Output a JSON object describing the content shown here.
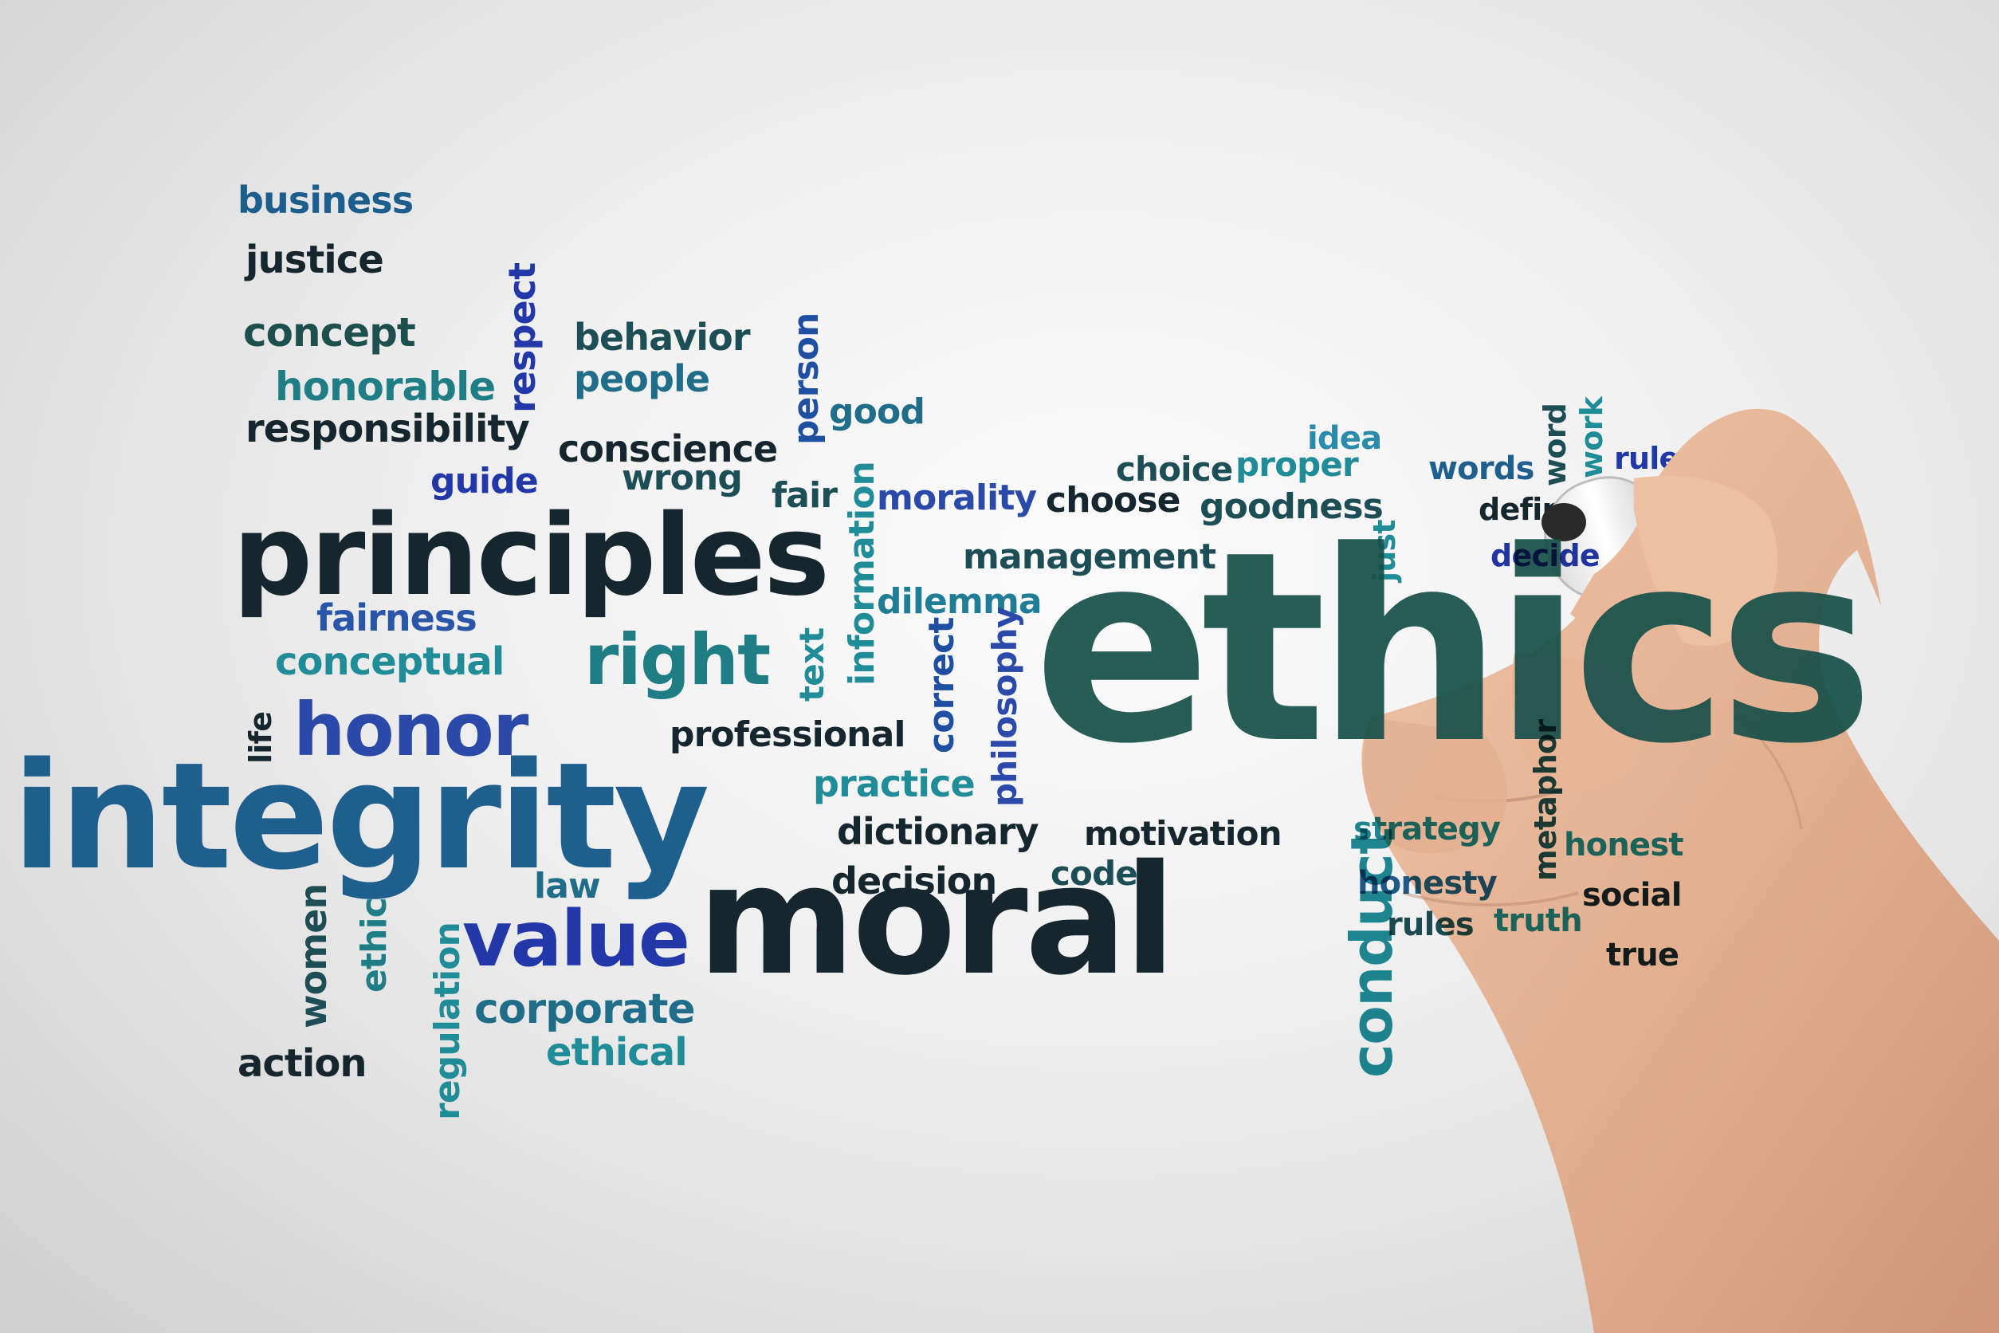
{
  "words": [
    {
      "text": "business",
      "color": "#1c5f8e",
      "weight": "bold"
    },
    {
      "text": "justice",
      "color": "#15262e",
      "weight": "bold"
    },
    {
      "text": "concept",
      "color": "#1d4f4e",
      "weight": "bold"
    },
    {
      "text": "honorable",
      "color": "#1f7d86",
      "weight": "bold"
    },
    {
      "text": "respect",
      "color": "#2237a8",
      "weight": "bold"
    },
    {
      "text": "behavior",
      "color": "#1d4e55",
      "weight": "bold"
    },
    {
      "text": "people",
      "color": "#1f6d88",
      "weight": "bold"
    },
    {
      "text": "person",
      "color": "#1f4fa0",
      "weight": "bold"
    },
    {
      "text": "good",
      "color": "#1f6d88",
      "weight": "bold"
    },
    {
      "text": "responsibility",
      "color": "#15262e",
      "weight": "bold"
    },
    {
      "text": "conscience",
      "color": "#15262e",
      "weight": "bold"
    },
    {
      "text": "guide",
      "color": "#2237a8",
      "weight": "bold"
    },
    {
      "text": "wrong",
      "color": "#1d4e55",
      "weight": "bold"
    },
    {
      "text": "fair",
      "color": "#1d4e55",
      "weight": "bold"
    },
    {
      "text": "morality",
      "color": "#2a49a8",
      "weight": "bold"
    },
    {
      "text": "choose",
      "color": "#15262e",
      "weight": "bold"
    },
    {
      "text": "choice",
      "color": "#1d4e55",
      "weight": "bold"
    },
    {
      "text": "proper",
      "color": "#1f8c98",
      "weight": "bold"
    },
    {
      "text": "idea",
      "color": "#2a8ca8",
      "weight": "bold"
    },
    {
      "text": "goodness",
      "color": "#1d4e55",
      "weight": "bold"
    },
    {
      "text": "words",
      "color": "#1f5f8e",
      "weight": "bold"
    },
    {
      "text": "word",
      "color": "#1d4e55",
      "weight": "bold"
    },
    {
      "text": "work",
      "color": "#1f8c98",
      "weight": "bold"
    },
    {
      "text": "rule",
      "color": "#2237a8",
      "weight": "bold"
    },
    {
      "text": "definition",
      "color": "#15262e",
      "weight": "bold"
    },
    {
      "text": "decide",
      "color": "#2237a8",
      "weight": "bold"
    },
    {
      "text": "just",
      "color": "#1f8c98",
      "weight": "bold"
    },
    {
      "text": "principles",
      "color": "#15262e",
      "weight": "bold"
    },
    {
      "text": "information",
      "color": "#1f8c98",
      "weight": "bold"
    },
    {
      "text": "management",
      "color": "#1d4e55",
      "weight": "bold"
    },
    {
      "text": "ethics",
      "color": "#17504a",
      "weight": "bold"
    },
    {
      "text": "fairness",
      "color": "#2a56a8",
      "weight": "bold"
    },
    {
      "text": "conceptual",
      "color": "#1f8c98",
      "weight": "bold"
    },
    {
      "text": "right",
      "color": "#1f7d86",
      "weight": "bold"
    },
    {
      "text": "text",
      "color": "#1f8c98",
      "weight": "bold"
    },
    {
      "text": "dilemma",
      "color": "#1f7d96",
      "weight": "bold"
    },
    {
      "text": "correct",
      "color": "#1f4fa0",
      "weight": "bold"
    },
    {
      "text": "philosophy",
      "color": "#2a49a8",
      "weight": "bold"
    },
    {
      "text": "life",
      "color": "#15262e",
      "weight": "bold"
    },
    {
      "text": "honor",
      "color": "#2a49a8",
      "weight": "bold"
    },
    {
      "text": "professional",
      "color": "#15262e",
      "weight": "bold"
    },
    {
      "text": "integrity",
      "color": "#1f5f8e",
      "weight": "bold"
    },
    {
      "text": "practice",
      "color": "#1f8c98",
      "weight": "bold"
    },
    {
      "text": "dictionary",
      "color": "#15262e",
      "weight": "bold"
    },
    {
      "text": "motivation",
      "color": "#15262e",
      "weight": "bold"
    },
    {
      "text": "conduct",
      "color": "#1f8c98",
      "weight": "bold"
    },
    {
      "text": "strategy",
      "color": "#1f8c98",
      "weight": "bold"
    },
    {
      "text": "metaphor",
      "color": "#1d4e55",
      "weight": "bold"
    },
    {
      "text": "honest",
      "color": "#1f8c98",
      "weight": "bold"
    },
    {
      "text": "law",
      "color": "#1f6d88",
      "weight": "bold"
    },
    {
      "text": "decision",
      "color": "#15262e",
      "weight": "bold"
    },
    {
      "text": "code",
      "color": "#1d4e55",
      "weight": "bold"
    },
    {
      "text": "honesty",
      "color": "#1f5f8e",
      "weight": "bold"
    },
    {
      "text": "social",
      "color": "#15262e",
      "weight": "bold"
    },
    {
      "text": "rules",
      "color": "#1d4e55",
      "weight": "bold"
    },
    {
      "text": "truth",
      "color": "#1f8c98",
      "weight": "bold"
    },
    {
      "text": "true",
      "color": "#15262e",
      "weight": "bold"
    },
    {
      "text": "women",
      "color": "#1d4e55",
      "weight": "bold"
    },
    {
      "text": "ethic",
      "color": "#1f7d86",
      "weight": "bold"
    },
    {
      "text": "regulation",
      "color": "#1f8c98",
      "weight": "bold"
    },
    {
      "text": "value",
      "color": "#2237a8",
      "weight": "bold"
    },
    {
      "text": "moral",
      "color": "#15262e",
      "weight": "bold"
    },
    {
      "text": "corporate",
      "color": "#1f6d88",
      "weight": "bold"
    },
    {
      "text": "ethical",
      "color": "#1f8c98",
      "weight": "bold"
    },
    {
      "text": "action",
      "color": "#15262e",
      "weight": "bold"
    }
  ],
  "hand": {
    "skin": "#e7b79a",
    "shadow": "#c98d70",
    "marker_cap": "#ffffff",
    "marker_tip": "#2a2a2a"
  }
}
